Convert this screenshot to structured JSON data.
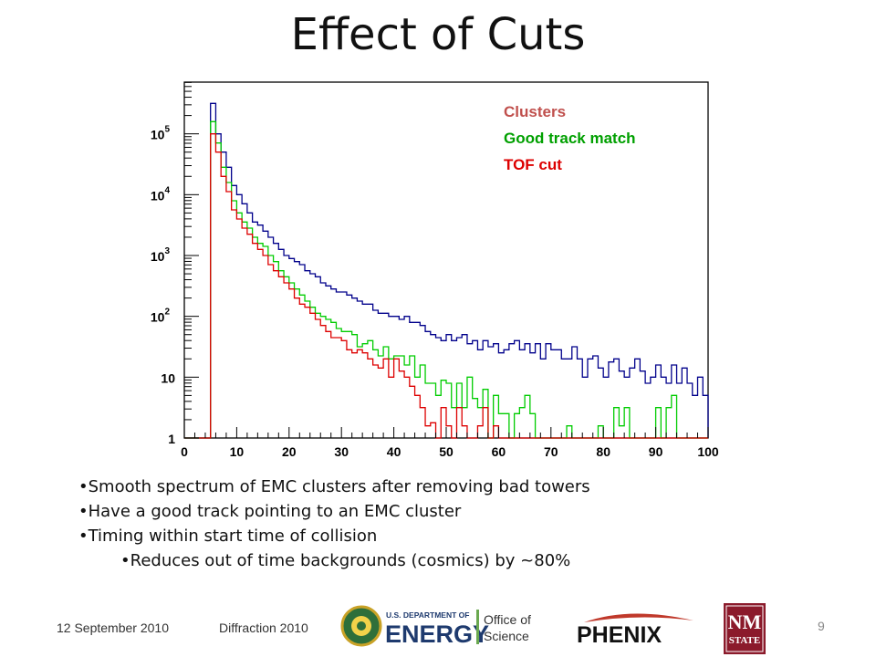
{
  "slide": {
    "title": "Effect of Cuts",
    "bullets": [
      "•Smooth spectrum of EMC clusters after removing bad towers",
      "•Have a good track pointing to an EMC cluster",
      "•Timing within start time of collision"
    ],
    "sub_bullets": [
      "•Reduces out of time backgrounds (cosmics) by ~80%"
    ],
    "footer": {
      "date": "12 September 2010",
      "conference": "Diffraction 2010",
      "page": "9"
    },
    "logos": {
      "doe_line1": "U.S. DEPARTMENT OF",
      "doe_line2": "ENERGY",
      "doe_office1": "Office of",
      "doe_office2": "Science",
      "phenix": "PHENIX",
      "nmstate_1": "NM",
      "nmstate_2": "STATE"
    }
  },
  "chart_data": {
    "type": "histogram",
    "xlim": [
      0,
      100
    ],
    "ylim_log10": [
      0,
      5.85
    ],
    "log_y": true,
    "bin_width": 1,
    "x_ticks": [
      0,
      10,
      20,
      30,
      40,
      50,
      60,
      70,
      80,
      90,
      100
    ],
    "y_ticks": [
      {
        "value": 1,
        "base": "1",
        "exp": ""
      },
      {
        "value": 10,
        "base": "10",
        "exp": ""
      },
      {
        "value": 100,
        "base": "10",
        "exp": "2"
      },
      {
        "value": 1000,
        "base": "10",
        "exp": "3"
      },
      {
        "value": 10000,
        "base": "10",
        "exp": "4"
      },
      {
        "value": 100000,
        "base": "10",
        "exp": "5"
      }
    ],
    "legend_position": "top-right",
    "series": [
      {
        "name": "Clusters",
        "color": "#00008b",
        "legend_color": "#c0504d",
        "log10_counts": [
          -1,
          -1,
          -1,
          -1,
          -1,
          5.5,
          5.0,
          4.7,
          4.45,
          4.15,
          4.0,
          3.85,
          3.7,
          3.55,
          3.5,
          3.4,
          3.3,
          3.2,
          3.1,
          3.0,
          2.95,
          2.9,
          2.85,
          2.75,
          2.7,
          2.65,
          2.55,
          2.5,
          2.45,
          2.4,
          2.4,
          2.35,
          2.3,
          2.25,
          2.2,
          2.2,
          2.1,
          2.05,
          2.05,
          2.0,
          2.0,
          1.95,
          2.0,
          1.9,
          1.9,
          1.85,
          1.75,
          1.7,
          1.65,
          1.6,
          1.7,
          1.6,
          1.65,
          1.7,
          1.55,
          1.6,
          1.45,
          1.6,
          1.5,
          1.55,
          1.4,
          1.45,
          1.55,
          1.6,
          1.45,
          1.55,
          1.4,
          1.55,
          1.3,
          1.55,
          1.45,
          1.45,
          1.3,
          1.3,
          1.5,
          1.3,
          1.0,
          1.3,
          1.35,
          1.15,
          1.0,
          1.25,
          1.3,
          1.1,
          1.0,
          1.15,
          1.3,
          1.1,
          0.9,
          1.0,
          1.2,
          1.0,
          0.9,
          1.2,
          0.9,
          1.15,
          0.9,
          0.7,
          1.0,
          0.7
        ]
      },
      {
        "name": "Good track match",
        "color": "#00cc00",
        "legend_color": "#00a000",
        "log10_counts": [
          -1,
          -1,
          -1,
          -1,
          -1,
          5.2,
          4.85,
          4.45,
          4.2,
          3.9,
          3.7,
          3.55,
          3.45,
          3.3,
          3.2,
          3.15,
          3.0,
          2.9,
          2.75,
          2.65,
          2.55,
          2.45,
          2.35,
          2.25,
          2.15,
          2.05,
          2.0,
          1.95,
          1.9,
          1.8,
          1.75,
          1.75,
          1.7,
          1.5,
          1.55,
          1.6,
          1.45,
          1.35,
          1.5,
          1.3,
          1.35,
          1.35,
          1.2,
          1.35,
          1.0,
          1.2,
          0.9,
          0.9,
          0.7,
          0.95,
          0.9,
          0.5,
          0.9,
          0.5,
          1.0,
          0.65,
          0.5,
          0.8,
          -1,
          0.7,
          0.4,
          0.4,
          -1,
          0.4,
          0.5,
          0.7,
          0.4,
          -1,
          -1,
          -1,
          -1,
          -1,
          -1,
          0.2,
          -1,
          -1,
          -1,
          -1,
          -1,
          0.2,
          -1,
          -1,
          0.5,
          0.2,
          0.5,
          -1,
          -1,
          -1,
          -1,
          -1,
          0.5,
          -1,
          0.5,
          0.7,
          -1,
          -1,
          -1,
          -1,
          -1,
          -1
        ]
      },
      {
        "name": "TOF cut",
        "color": "#dd0000",
        "legend_color": "#dd0000",
        "log10_counts": [
          -1,
          -1,
          -1,
          -1,
          0,
          5.0,
          4.7,
          4.3,
          4.05,
          3.75,
          3.6,
          3.45,
          3.35,
          3.2,
          3.1,
          3.0,
          2.85,
          2.75,
          2.65,
          2.55,
          2.45,
          2.3,
          2.2,
          2.15,
          2.05,
          1.95,
          1.85,
          1.75,
          1.65,
          1.65,
          1.6,
          1.45,
          1.4,
          1.45,
          1.4,
          1.3,
          1.2,
          1.15,
          1.3,
          1.0,
          1.3,
          1.1,
          1.0,
          0.85,
          0.7,
          0.5,
          0.2,
          0.25,
          -1,
          0.5,
          0.2,
          -1,
          0.5,
          0.2,
          -1,
          -1,
          0.2,
          0.5,
          -1,
          0.2,
          -1,
          -1,
          -1,
          -1,
          -1,
          -1,
          -1,
          -1,
          -1,
          -1,
          -1,
          -1,
          -1,
          -1,
          -1,
          -1,
          -1,
          -1,
          -1,
          -1,
          -1,
          -1,
          -1,
          -1,
          -1,
          -1,
          -1,
          -1,
          -1,
          -1,
          -1,
          -1,
          -1,
          -1,
          -1,
          -1,
          -1,
          -1,
          -1,
          -1
        ]
      }
    ]
  }
}
